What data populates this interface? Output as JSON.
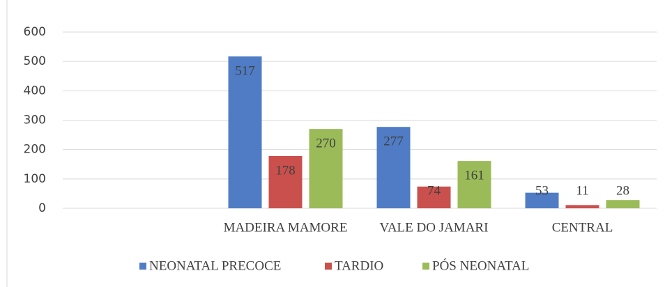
{
  "chart_data": {
    "type": "bar",
    "categories": [
      null,
      "MADEIRA MAMORE",
      "VALE DO JAMARI",
      "CENTRAL"
    ],
    "series": [
      {
        "name": "NEONATAL PRECOCE",
        "color": "#4f7cc4",
        "values": [
          null,
          517,
          277,
          53
        ]
      },
      {
        "name": "TARDIO",
        "color": "#c9504c",
        "values": [
          null,
          178,
          74,
          11
        ]
      },
      {
        "name": "PÓS NEONATAL",
        "color": "#9bbb59",
        "values": [
          null,
          270,
          161,
          28
        ]
      }
    ],
    "ylim": [
      0,
      600
    ],
    "yticks": [
      0,
      100,
      200,
      300,
      400,
      500,
      600
    ],
    "grid": true,
    "legend": "bottom"
  }
}
